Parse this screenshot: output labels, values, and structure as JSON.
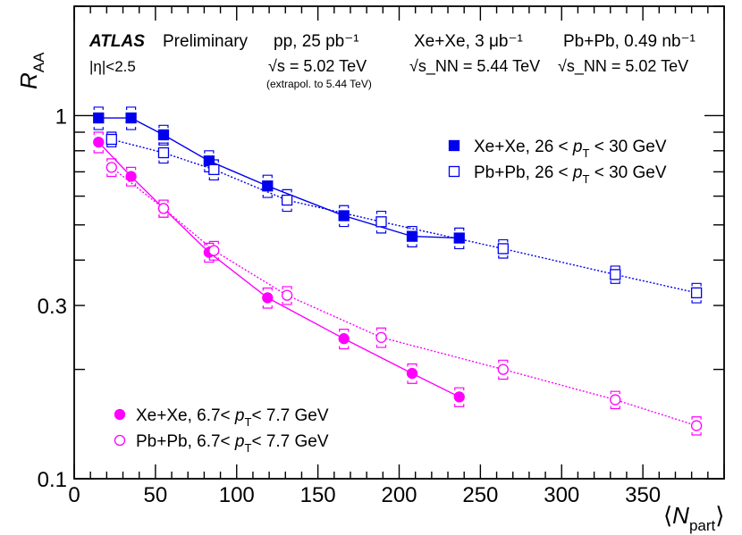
{
  "chart_data": {
    "type": "scatter",
    "title": "",
    "xlabel": "⟨N_part⟩",
    "ylabel": "R_AA",
    "xlim": [
      0,
      400
    ],
    "ylim": [
      0.1,
      2.0
    ],
    "yscale": "log",
    "x_ticks": [
      0,
      50,
      100,
      150,
      200,
      250,
      300,
      350
    ],
    "y_tick_labels": [
      {
        "value": 0.1,
        "label": "0.1"
      },
      {
        "value": 0.3,
        "label": "0.3"
      },
      {
        "value": 1,
        "label": "1"
      }
    ],
    "annotations": {
      "experiment": "ATLAS",
      "status": "Preliminary",
      "eta": "|η|<2.5",
      "pp_lumi": "pp, 25 pb⁻¹",
      "pp_energy": "√s = 5.02 TeV",
      "pp_extrap": "(extrapol. to 5.44 TeV)",
      "xexe_lumi": "Xe+Xe, 3 μb⁻¹",
      "xexe_energy": "√s_NN = 5.44 TeV",
      "pbpb_lumi": "Pb+Pb, 0.49 nb⁻¹",
      "pbpb_energy": "√s_NN = 5.02 TeV"
    },
    "series": [
      {
        "name": "Xe+Xe, 26 < p_T < 30 GeV",
        "color": "#0000ee",
        "marker": "square-filled",
        "line": "solid",
        "x": [
          15,
          35,
          55,
          83,
          119,
          166,
          208,
          237
        ],
        "y": [
          0.985,
          0.985,
          0.885,
          0.75,
          0.64,
          0.53,
          0.465,
          0.46
        ],
        "sys_err": [
          0.07,
          0.07,
          0.055,
          0.05,
          0.045,
          0.035,
          0.03,
          0.03
        ]
      },
      {
        "name": "Pb+Pb, 26 < p_T < 30 GeV",
        "color": "#0000ee",
        "marker": "square-open",
        "line": "dotted",
        "x": [
          23,
          55,
          86,
          131,
          189,
          264,
          333,
          383
        ],
        "y": [
          0.86,
          0.79,
          0.71,
          0.585,
          0.51,
          0.43,
          0.365,
          0.325
        ],
        "sys_err": [
          0.04,
          0.05,
          0.045,
          0.04,
          0.035,
          0.025,
          0.02,
          0.02
        ]
      },
      {
        "name": "Xe+Xe, 6.7< p_T< 7.7 GeV",
        "color": "#ff00ff",
        "marker": "circle-filled",
        "line": "solid",
        "x": [
          15,
          35,
          55,
          83,
          119,
          166,
          208,
          237
        ],
        "y": [
          0.845,
          0.68,
          0.555,
          0.42,
          0.315,
          0.243,
          0.195,
          0.168
        ],
        "sys_err": [
          0.055,
          0.04,
          0.03,
          0.025,
          0.02,
          0.015,
          0.012,
          0.01
        ]
      },
      {
        "name": "Pb+Pb, 6.7< p_T< 7.7 GeV",
        "color": "#ff00ff",
        "marker": "circle-open",
        "line": "dotted",
        "x": [
          23,
          55,
          86,
          131,
          189,
          264,
          333,
          383
        ],
        "y": [
          0.72,
          0.555,
          0.425,
          0.32,
          0.245,
          0.2,
          0.165,
          0.14
        ],
        "sys_err": [
          0.04,
          0.03,
          0.025,
          0.018,
          0.015,
          0.012,
          0.009,
          0.008
        ]
      }
    ],
    "legend_upper": [
      "Xe+Xe, 26 < p_T < 30 GeV",
      "Pb+Pb, 26 < p_T < 30 GeV"
    ],
    "legend_lower": [
      "Xe+Xe, 6.7< p_T< 7.7 GeV",
      "Pb+Pb, 6.7< p_T< 7.7 GeV"
    ]
  }
}
